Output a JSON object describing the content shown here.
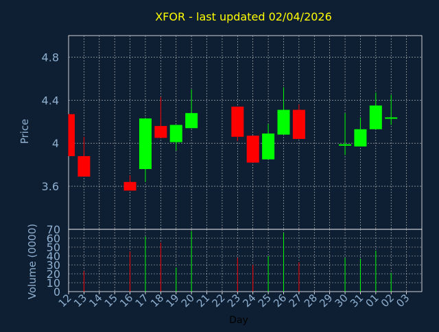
{
  "chart_data": {
    "type": "candlestick",
    "title": "XFOR - last updated 02/04/2026",
    "xlabel": "Day",
    "ylabel_price": "Price",
    "ylabel_volume": "Volume (0000)",
    "x_ticks": [
      "12",
      "13",
      "14",
      "15",
      "16",
      "17",
      "18",
      "19",
      "20",
      "21",
      "22",
      "23",
      "24",
      "25",
      "26",
      "27",
      "28",
      "29",
      "30",
      "31",
      "01",
      "02",
      "03"
    ],
    "price_axis": {
      "ylim": [
        3.2,
        5.0
      ],
      "ticks": [
        "3.6",
        "4",
        "4.4",
        "4.8"
      ],
      "tick_values": [
        3.6,
        4.0,
        4.4,
        4.8
      ]
    },
    "volume_axis": {
      "ylim": [
        0,
        70
      ],
      "ticks": [
        "0",
        "10",
        "20",
        "30",
        "40",
        "50",
        "60",
        "70"
      ],
      "tick_values": [
        0,
        10,
        20,
        30,
        40,
        50,
        60,
        70
      ]
    },
    "grid": true,
    "colors": {
      "background": "#0f1f33",
      "up": "#00ff00",
      "down": "#ff0000",
      "title": "#ffff00",
      "axis_text": "#8fb0d0",
      "grid": "#c8c8c8",
      "frame": "#ffffff"
    },
    "candles": [
      {
        "day": "12",
        "open": 4.27,
        "high": 4.27,
        "low": 3.88,
        "close": 3.88
      },
      {
        "day": "13",
        "open": 3.88,
        "high": 4.06,
        "low": 3.69,
        "close": 3.69
      },
      {
        "day": "16",
        "open": 3.64,
        "high": 3.7,
        "low": 3.56,
        "close": 3.56
      },
      {
        "day": "17",
        "open": 3.76,
        "high": 4.23,
        "low": 3.64,
        "close": 4.23
      },
      {
        "day": "18",
        "open": 4.16,
        "high": 4.43,
        "low": 4.05,
        "close": 4.05
      },
      {
        "day": "19",
        "open": 4.01,
        "high": 4.17,
        "low": 3.93,
        "close": 4.17
      },
      {
        "day": "20",
        "open": 4.14,
        "high": 4.5,
        "low": 4.14,
        "close": 4.28
      },
      {
        "day": "23",
        "open": 4.34,
        "high": 4.34,
        "low": 4.02,
        "close": 4.06
      },
      {
        "day": "24",
        "open": 4.07,
        "high": 4.07,
        "low": 3.82,
        "close": 3.82
      },
      {
        "day": "25",
        "open": 3.85,
        "high": 4.18,
        "low": 3.85,
        "close": 4.09
      },
      {
        "day": "26",
        "open": 4.08,
        "high": 4.52,
        "low": 4.08,
        "close": 4.31
      },
      {
        "day": "27",
        "open": 4.31,
        "high": 4.36,
        "low": 4.04,
        "close": 4.04
      },
      {
        "day": "30",
        "open": 3.98,
        "high": 4.28,
        "low": 3.89,
        "close": 3.99
      },
      {
        "day": "31",
        "open": 3.97,
        "high": 4.24,
        "low": 3.97,
        "close": 4.13
      },
      {
        "day": "01",
        "open": 4.13,
        "high": 4.47,
        "low": 4.13,
        "close": 4.35
      },
      {
        "day": "02",
        "open": 4.23,
        "high": 4.45,
        "low": 4.17,
        "close": 4.24
      }
    ],
    "volume": [
      {
        "day": "13",
        "value": 23
      },
      {
        "day": "16",
        "value": 45
      },
      {
        "day": "17",
        "value": 62
      },
      {
        "day": "18",
        "value": 55
      },
      {
        "day": "19",
        "value": 27
      },
      {
        "day": "20",
        "value": 68
      },
      {
        "day": "23",
        "value": 38
      },
      {
        "day": "24",
        "value": 30
      },
      {
        "day": "25",
        "value": 40
      },
      {
        "day": "26",
        "value": 66
      },
      {
        "day": "27",
        "value": 33
      },
      {
        "day": "30",
        "value": 38
      },
      {
        "day": "31",
        "value": 37
      },
      {
        "day": "01",
        "value": 46
      },
      {
        "day": "02",
        "value": 21
      }
    ]
  }
}
